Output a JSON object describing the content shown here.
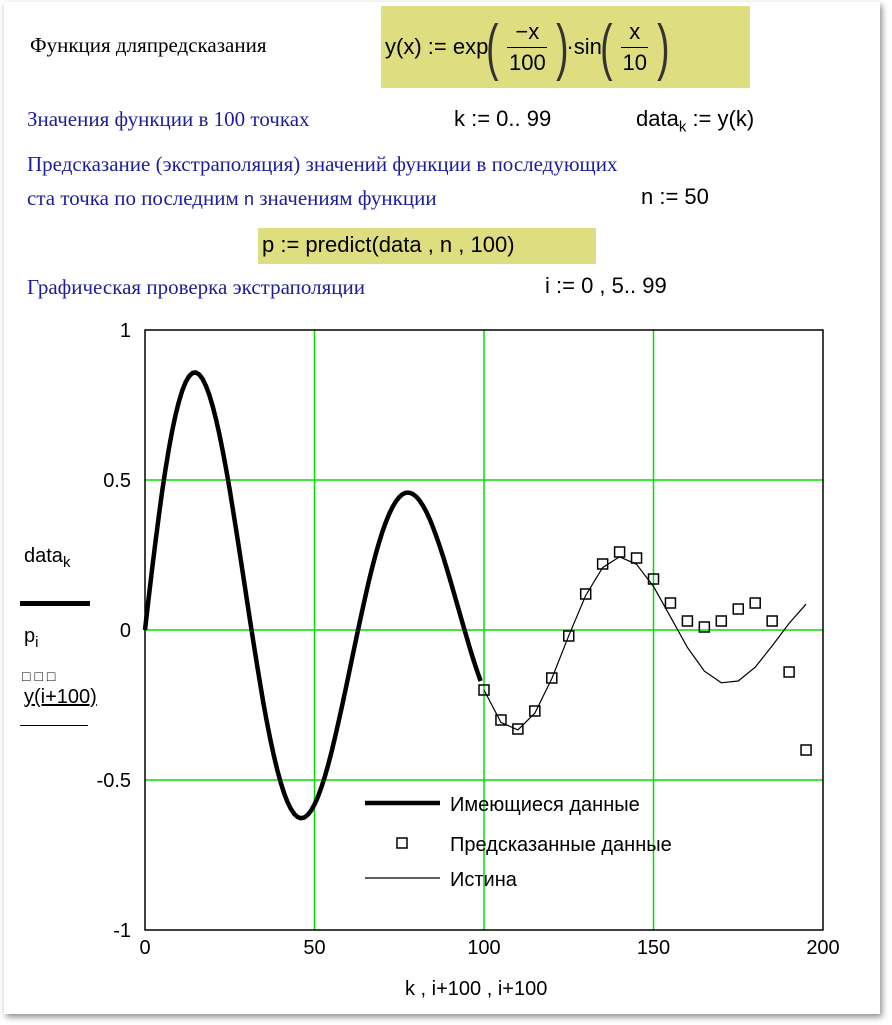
{
  "worksheet": {
    "line1_label": "Функция дляпредсказания",
    "func_def": {
      "lhs": "y(x) :=",
      "exp": "exp",
      "num1": "−x",
      "den1": "100",
      "dot": "·",
      "sin": "sin",
      "num2": "x",
      "den2": "10"
    },
    "line2_label": "Значения функции в 100 точках",
    "k_def": "k := 0.. 99",
    "data_def_base": "data",
    "data_def_sub": "k",
    "data_def_rhs": " := y(k)",
    "line3_label": "Предсказание (экстраполяция) значений функции в последующих",
    "line4_label": "ста точка по последним",
    "line4_n": "n",
    "line4_label2": "значениям функции",
    "n_def": "n := 50",
    "predict_def": "p := predict(data , n , 100)",
    "line5_label": "Графическая проверка экстраполяции",
    "i_def": "i := 0 , 5.. 99"
  },
  "chart_data": {
    "type": "line",
    "xlabel": "k , i+100 , i+100",
    "ylabel_lines": [
      {
        "base": "data",
        "sub": "k"
      },
      {
        "base": "p",
        "sub": "i"
      },
      {
        "base": "y(i+100)",
        "sub": ""
      }
    ],
    "xlim": [
      0,
      200
    ],
    "ylim": [
      -1,
      1
    ],
    "x_ticks": [
      "0",
      "50",
      "100",
      "150",
      "200"
    ],
    "y_ticks": [
      "1",
      "0.5",
      "0",
      "-0.5",
      "-1"
    ],
    "x_tick_values": [
      0,
      50,
      100,
      150,
      200
    ],
    "y_tick_values": [
      1,
      0.5,
      0,
      -0.5,
      -1
    ],
    "grid": true,
    "grid_color": "#00e000",
    "legend_position": "bottom-center",
    "series": [
      {
        "name": "Имеющиеся данные",
        "style": "thick-line",
        "k_range": [
          0,
          99
        ],
        "color": "#000000"
      },
      {
        "name": "Предсказанные данные",
        "style": "squares",
        "x": [
          100,
          105,
          110,
          115,
          120,
          125,
          130,
          135,
          140,
          145,
          150,
          155,
          160,
          165,
          170,
          175,
          180,
          185,
          190,
          195
        ],
        "y": [
          -0.2,
          -0.3,
          -0.33,
          -0.27,
          -0.16,
          -0.02,
          0.12,
          0.22,
          0.26,
          0.24,
          0.17,
          0.09,
          0.03,
          0.01,
          0.03,
          0.07,
          0.09,
          0.03,
          -0.14,
          -0.4
        ]
      },
      {
        "name": "Истина",
        "style": "thin-line",
        "x": [
          100,
          105,
          110,
          115,
          120,
          125,
          130,
          135,
          140,
          145,
          150,
          155,
          160,
          165,
          170,
          175,
          180,
          185,
          190,
          195
        ],
        "y": [
          -0.2,
          -0.308,
          -0.333,
          -0.277,
          -0.162,
          -0.019,
          0.115,
          0.208,
          0.244,
          0.219,
          0.145,
          0.044,
          -0.058,
          -0.137,
          -0.176,
          -0.17,
          -0.124,
          -0.053,
          0.022,
          0.086
        ]
      }
    ]
  }
}
